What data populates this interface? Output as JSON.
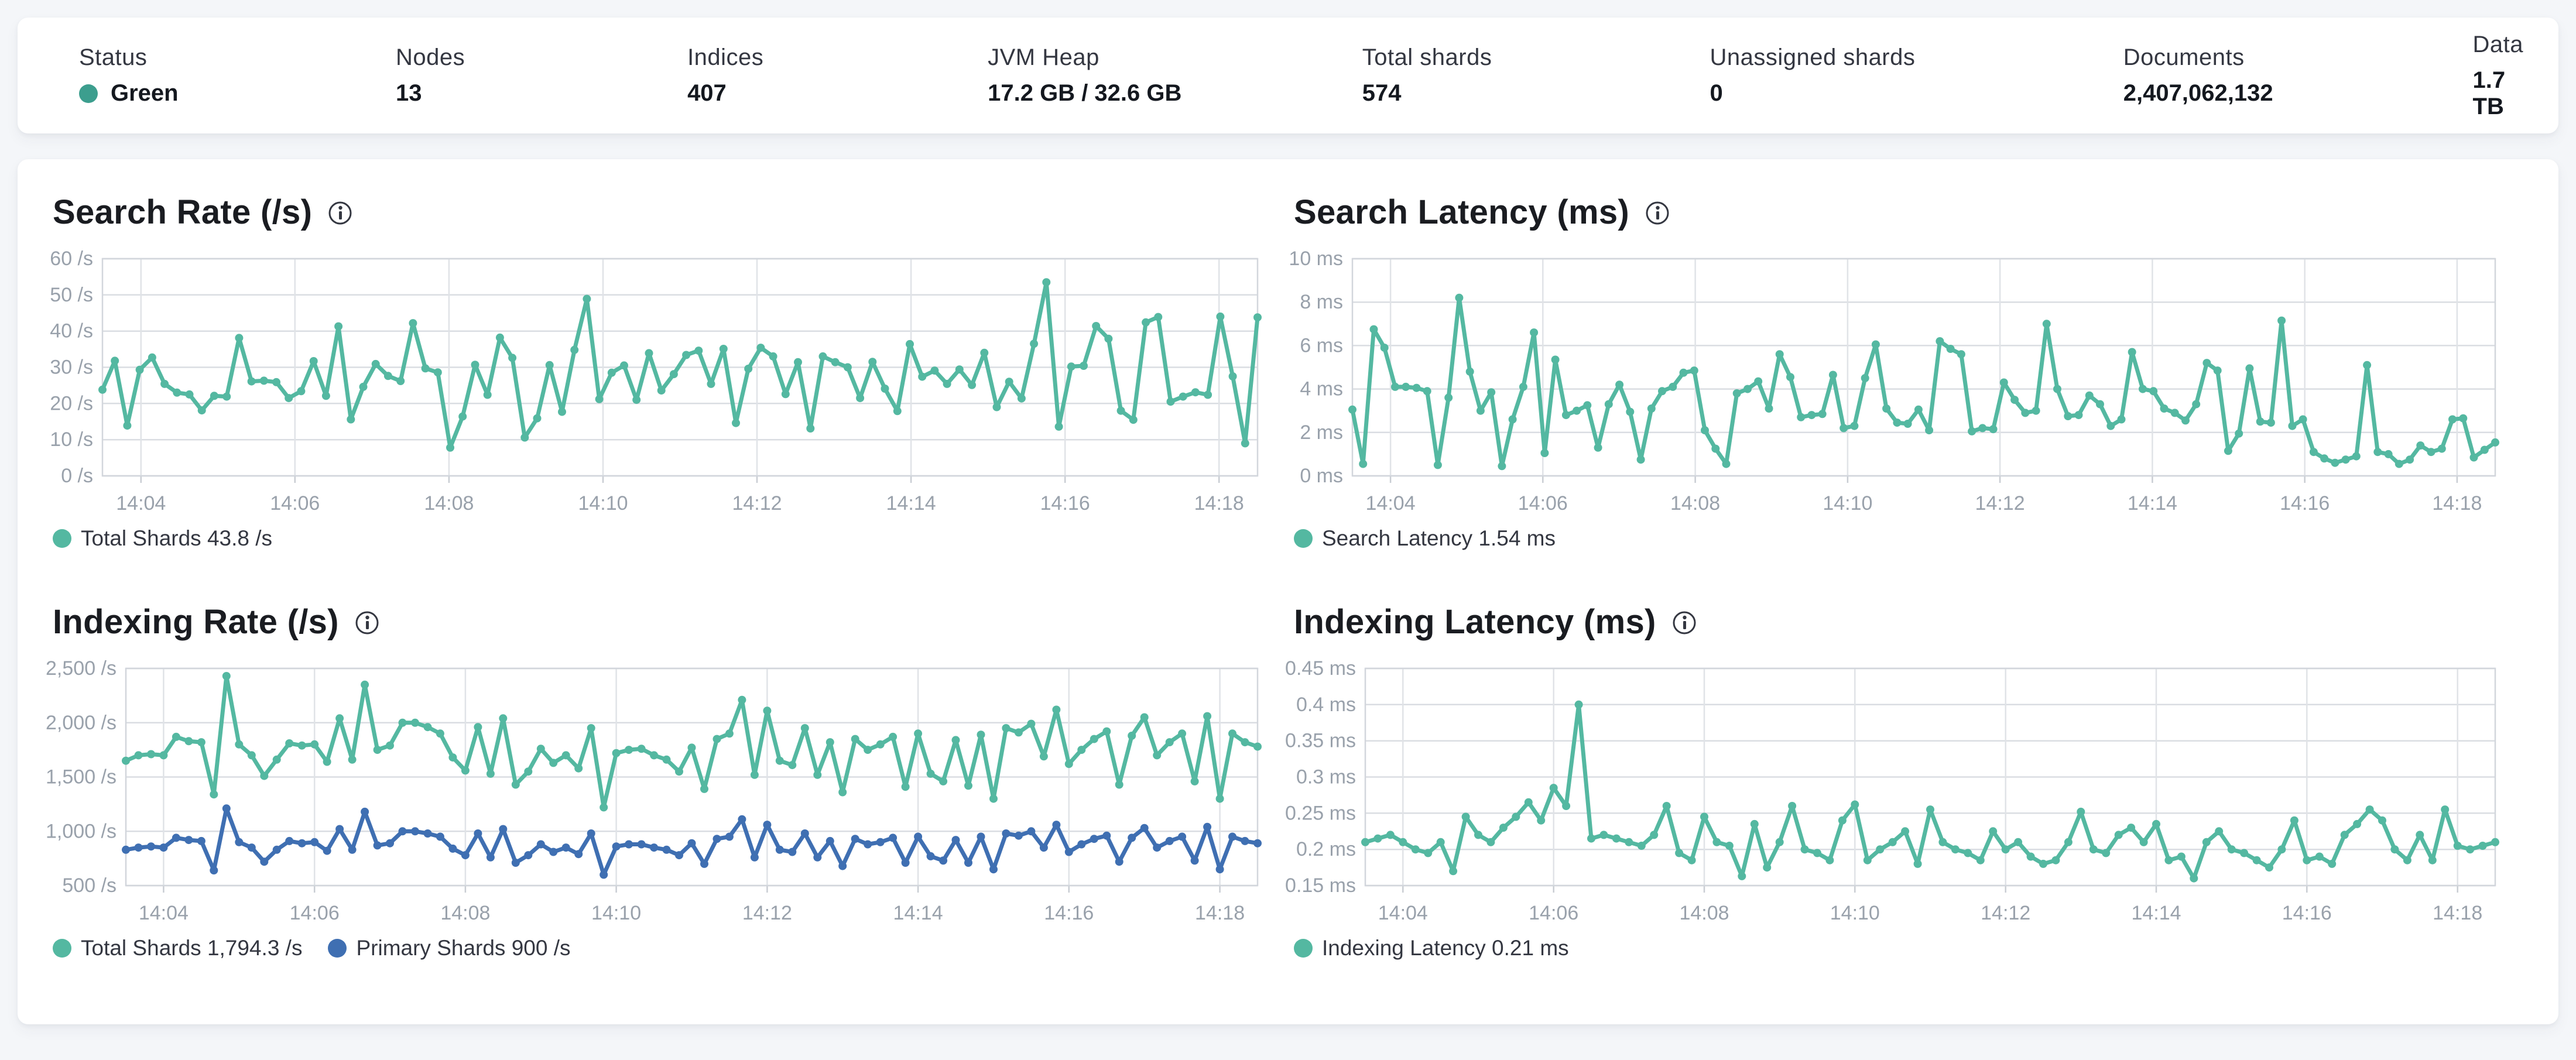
{
  "colors": {
    "teal": "#54b8a1",
    "blue": "#3f6fb2",
    "status_green": "#3c9e8e"
  },
  "status_bar": {
    "items": [
      {
        "label": "Status",
        "value": "Green"
      },
      {
        "label": "Nodes",
        "value": "13"
      },
      {
        "label": "Indices",
        "value": "407"
      },
      {
        "label": "JVM Heap",
        "value": "17.2 GB / 32.6 GB"
      },
      {
        "label": "Total shards",
        "value": "574"
      },
      {
        "label": "Unassigned shards",
        "value": "0"
      },
      {
        "label": "Documents",
        "value": "2,407,062,132"
      },
      {
        "label": "Data",
        "value": "1.7 TB"
      }
    ]
  },
  "chart_data": [
    {
      "type": "line",
      "title": "Search Rate (/s)",
      "ylabel": "/s",
      "y_min": 0,
      "y_max": 60,
      "y_ticks": [
        {
          "v": 0,
          "label": "0 /s"
        },
        {
          "v": 10,
          "label": "10 /s"
        },
        {
          "v": 20,
          "label": "20 /s"
        },
        {
          "v": 30,
          "label": "30 /s"
        },
        {
          "v": 40,
          "label": "40 /s"
        },
        {
          "v": 50,
          "label": "50 /s"
        },
        {
          "v": 60,
          "label": "60 /s"
        }
      ],
      "x_span_minutes": 15,
      "x_ticks": [
        {
          "t": 0.5,
          "label": "14:04"
        },
        {
          "t": 2.5,
          "label": "14:06"
        },
        {
          "t": 4.5,
          "label": "14:08"
        },
        {
          "t": 6.5,
          "label": "14:10"
        },
        {
          "t": 8.5,
          "label": "14:12"
        },
        {
          "t": 10.5,
          "label": "14:14"
        },
        {
          "t": 12.5,
          "label": "14:16"
        },
        {
          "t": 14.5,
          "label": "14:18"
        }
      ],
      "layout": {
        "gutter": 85,
        "right_pad": 2
      },
      "series": [
        {
          "name": "Total Shards",
          "legend": "Total Shards 43.8 /s",
          "color": "teal",
          "values": [
            23.8,
            31.8,
            13.9,
            29.3,
            32.7,
            25.4,
            23.0,
            22.5,
            18.1,
            22.1,
            21.9,
            38.1,
            26.1,
            26.3,
            25.9,
            21.5,
            23.4,
            31.7,
            22.1,
            41.3,
            15.6,
            24.6,
            30.9,
            27.6,
            26.2,
            42.2,
            29.7,
            28.6,
            7.8,
            16.4,
            30.7,
            22.4,
            38.2,
            32.6,
            10.6,
            15.9,
            30.6,
            17.7,
            34.8,
            48.9,
            21.2,
            28.5,
            30.5,
            21.0,
            33.9,
            23.6,
            28.1,
            33.4,
            34.6,
            25.4,
            35.1,
            14.6,
            29.6,
            35.4,
            33.0,
            22.6,
            31.4,
            13.1,
            33.0,
            31.4,
            30.0,
            21.5,
            31.5,
            24.1,
            17.9,
            36.4,
            27.4,
            29.1,
            25.4,
            29.4,
            25.1,
            34.0,
            19.0,
            26.0,
            21.4,
            36.5,
            53.5,
            13.6,
            30.2,
            30.4,
            41.4,
            37.9,
            18.0,
            15.5,
            42.4,
            43.9,
            20.5,
            21.9,
            23.1,
            22.4,
            44.0,
            27.5,
            9.0,
            43.8
          ]
        }
      ]
    },
    {
      "type": "line",
      "title": "Search Latency (ms)",
      "ylabel": "ms",
      "y_min": 0,
      "y_max": 10,
      "y_ticks": [
        {
          "v": 0,
          "label": "0 ms"
        },
        {
          "v": 2,
          "label": "2 ms"
        },
        {
          "v": 4,
          "label": "4 ms"
        },
        {
          "v": 6,
          "label": "6 ms"
        },
        {
          "v": 8,
          "label": "8 ms"
        },
        {
          "v": 10,
          "label": "10 ms"
        }
      ],
      "x_span_minutes": 15,
      "x_ticks": [
        {
          "t": 0.5,
          "label": "14:04"
        },
        {
          "t": 2.5,
          "label": "14:06"
        },
        {
          "t": 4.5,
          "label": "14:08"
        },
        {
          "t": 6.5,
          "label": "14:10"
        },
        {
          "t": 8.5,
          "label": "14:12"
        },
        {
          "t": 10.5,
          "label": "14:14"
        },
        {
          "t": 12.5,
          "label": "14:16"
        },
        {
          "t": 14.5,
          "label": "14:18"
        }
      ],
      "layout": {
        "gutter": 100,
        "right_pad": 18
      },
      "series": [
        {
          "name": "Search Latency",
          "legend": "Search Latency 1.54 ms",
          "color": "teal",
          "values": [
            3.05,
            0.55,
            6.75,
            5.9,
            4.1,
            4.1,
            4.05,
            3.9,
            0.5,
            3.6,
            8.2,
            4.8,
            3.0,
            3.85,
            0.45,
            2.6,
            4.1,
            6.6,
            1.05,
            5.35,
            2.8,
            3.0,
            3.25,
            1.3,
            3.3,
            4.2,
            2.95,
            0.75,
            3.1,
            3.9,
            4.1,
            4.75,
            4.85,
            2.1,
            1.25,
            0.55,
            3.8,
            4.0,
            4.35,
            3.1,
            5.6,
            4.55,
            2.7,
            2.8,
            2.85,
            4.65,
            2.2,
            2.3,
            4.5,
            6.05,
            3.1,
            2.45,
            2.4,
            3.05,
            2.1,
            6.2,
            5.85,
            5.6,
            2.05,
            2.2,
            2.15,
            4.3,
            3.5,
            2.9,
            3.0,
            7.0,
            4.0,
            2.75,
            2.8,
            3.7,
            3.3,
            2.3,
            2.6,
            5.7,
            4.0,
            3.9,
            3.1,
            2.9,
            2.55,
            3.3,
            5.2,
            4.85,
            1.15,
            1.95,
            4.95,
            2.5,
            2.45,
            7.15,
            2.3,
            2.6,
            1.1,
            0.8,
            0.6,
            0.75,
            0.9,
            5.1,
            1.1,
            1.0,
            0.55,
            0.75,
            1.4,
            1.1,
            1.25,
            2.6,
            2.65,
            0.85,
            1.2,
            1.54
          ]
        }
      ]
    },
    {
      "type": "line",
      "title": "Indexing Rate (/s)",
      "ylabel": "/s",
      "y_min": 500,
      "y_max": 2500,
      "y_ticks": [
        {
          "v": 500,
          "label": "500 /s"
        },
        {
          "v": 1000,
          "label": "1,000 /s"
        },
        {
          "v": 1500,
          "label": "1,500 /s"
        },
        {
          "v": 2000,
          "label": "2,000 /s"
        },
        {
          "v": 2500,
          "label": "2,500 /s"
        }
      ],
      "x_span_minutes": 15,
      "x_ticks": [
        {
          "t": 0.5,
          "label": "14:04"
        },
        {
          "t": 2.5,
          "label": "14:06"
        },
        {
          "t": 4.5,
          "label": "14:08"
        },
        {
          "t": 6.5,
          "label": "14:10"
        },
        {
          "t": 8.5,
          "label": "14:12"
        },
        {
          "t": 10.5,
          "label": "14:14"
        },
        {
          "t": 12.5,
          "label": "14:16"
        },
        {
          "t": 14.5,
          "label": "14:18"
        }
      ],
      "layout": {
        "gutter": 125,
        "right_pad": 2
      },
      "series": [
        {
          "name": "Total Shards",
          "legend": "Total Shards 1,794.3 /s",
          "color": "teal",
          "values": [
            1650,
            1700,
            1710,
            1700,
            1870,
            1830,
            1820,
            1340,
            2430,
            1800,
            1700,
            1510,
            1660,
            1810,
            1790,
            1800,
            1640,
            2040,
            1660,
            2350,
            1750,
            1790,
            2000,
            2000,
            1960,
            1900,
            1680,
            1560,
            1960,
            1530,
            2040,
            1430,
            1550,
            1760,
            1630,
            1700,
            1580,
            1950,
            1220,
            1720,
            1750,
            1760,
            1700,
            1660,
            1550,
            1770,
            1390,
            1850,
            1900,
            2210,
            1520,
            2110,
            1650,
            1610,
            1950,
            1520,
            1820,
            1360,
            1850,
            1750,
            1800,
            1870,
            1410,
            1900,
            1530,
            1460,
            1840,
            1420,
            1890,
            1300,
            1950,
            1910,
            1990,
            1690,
            2120,
            1620,
            1750,
            1850,
            1920,
            1430,
            1880,
            2050,
            1700,
            1820,
            1900,
            1460,
            2060,
            1300,
            1900,
            1820,
            1780
          ]
        },
        {
          "name": "Primary Shards",
          "legend": "Primary Shards 900 /s",
          "color": "blue",
          "values": [
            830,
            850,
            860,
            850,
            940,
            920,
            910,
            640,
            1210,
            900,
            850,
            720,
            830,
            910,
            890,
            900,
            820,
            1020,
            830,
            1180,
            870,
            890,
            1000,
            1000,
            980,
            950,
            840,
            780,
            980,
            760,
            1020,
            710,
            780,
            880,
            810,
            850,
            790,
            980,
            600,
            860,
            880,
            880,
            850,
            830,
            780,
            890,
            700,
            930,
            950,
            1110,
            760,
            1060,
            830,
            810,
            980,
            760,
            910,
            680,
            930,
            880,
            900,
            940,
            710,
            950,
            770,
            730,
            920,
            710,
            950,
            650,
            980,
            960,
            1000,
            850,
            1060,
            810,
            880,
            930,
            960,
            720,
            940,
            1030,
            850,
            910,
            950,
            730,
            1040,
            650,
            950,
            910,
            890
          ]
        }
      ]
    },
    {
      "type": "line",
      "title": "Indexing Latency (ms)",
      "ylabel": "ms",
      "y_min": 0.15,
      "y_max": 0.45,
      "y_ticks": [
        {
          "v": 0.15,
          "label": "0.15 ms"
        },
        {
          "v": 0.2,
          "label": "0.2 ms"
        },
        {
          "v": 0.25,
          "label": "0.25 ms"
        },
        {
          "v": 0.3,
          "label": "0.3 ms"
        },
        {
          "v": 0.35,
          "label": "0.35 ms"
        },
        {
          "v": 0.4,
          "label": "0.4 ms"
        },
        {
          "v": 0.45,
          "label": "0.45 ms"
        }
      ],
      "x_span_minutes": 15,
      "x_ticks": [
        {
          "t": 0.5,
          "label": "14:04"
        },
        {
          "t": 2.5,
          "label": "14:06"
        },
        {
          "t": 4.5,
          "label": "14:08"
        },
        {
          "t": 6.5,
          "label": "14:10"
        },
        {
          "t": 8.5,
          "label": "14:12"
        },
        {
          "t": 10.5,
          "label": "14:14"
        },
        {
          "t": 12.5,
          "label": "14:16"
        },
        {
          "t": 14.5,
          "label": "14:18"
        }
      ],
      "layout": {
        "gutter": 122,
        "right_pad": 18
      },
      "series": [
        {
          "name": "Indexing Latency",
          "legend": "Indexing Latency 0.21 ms",
          "color": "teal",
          "values": [
            0.21,
            0.215,
            0.22,
            0.21,
            0.2,
            0.195,
            0.21,
            0.17,
            0.245,
            0.22,
            0.21,
            0.23,
            0.245,
            0.265,
            0.24,
            0.285,
            0.26,
            0.4,
            0.215,
            0.22,
            0.215,
            0.21,
            0.205,
            0.22,
            0.26,
            0.195,
            0.185,
            0.245,
            0.21,
            0.205,
            0.163,
            0.235,
            0.175,
            0.21,
            0.26,
            0.2,
            0.195,
            0.185,
            0.24,
            0.262,
            0.185,
            0.2,
            0.21,
            0.225,
            0.18,
            0.255,
            0.21,
            0.2,
            0.195,
            0.185,
            0.225,
            0.2,
            0.21,
            0.19,
            0.18,
            0.185,
            0.21,
            0.252,
            0.2,
            0.195,
            0.22,
            0.23,
            0.21,
            0.235,
            0.185,
            0.19,
            0.16,
            0.21,
            0.225,
            0.2,
            0.195,
            0.185,
            0.175,
            0.2,
            0.24,
            0.185,
            0.19,
            0.18,
            0.22,
            0.235,
            0.255,
            0.24,
            0.2,
            0.185,
            0.22,
            0.185,
            0.255,
            0.205,
            0.2,
            0.205,
            0.21
          ]
        }
      ]
    }
  ]
}
